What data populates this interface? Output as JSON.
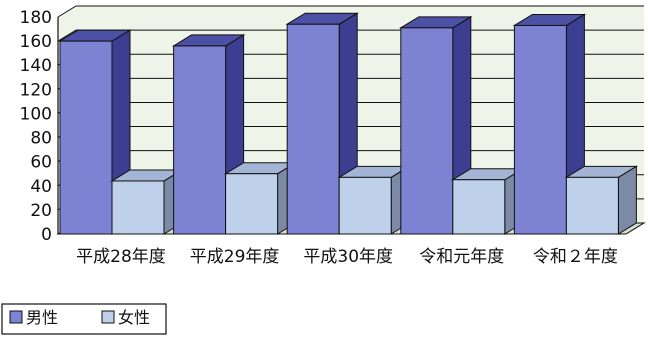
{
  "chart_data": {
    "type": "bar",
    "style": "3d-clustered",
    "categories": [
      "平成28年度",
      "平成29年度",
      "平成30年度",
      "令和元年度",
      "令和２年度"
    ],
    "series": [
      {
        "name": "男性",
        "values": [
          160,
          156,
          174,
          171,
          173
        ]
      },
      {
        "name": "女性",
        "values": [
          44,
          50,
          47,
          45,
          47
        ]
      }
    ],
    "ylim": [
      0,
      180
    ],
    "yticks": [
      0,
      20,
      40,
      60,
      80,
      100,
      120,
      140,
      160,
      180
    ],
    "grid": true,
    "legend_position": "bottom-left",
    "colors": {
      "male_front": "#7d82d2",
      "male_side": "#3c3f91",
      "male_top": "#4d51a6",
      "female_front": "#bfd0ea",
      "female_side": "#7d8aa6",
      "female_top": "#a4b4d4",
      "wall": "#eef4e8",
      "grid": "#111111"
    }
  }
}
